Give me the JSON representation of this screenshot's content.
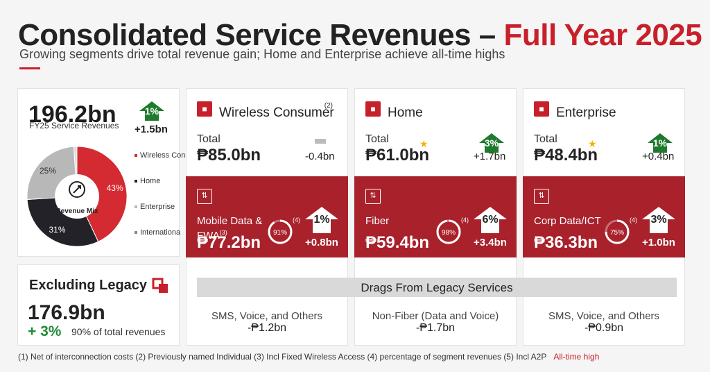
{
  "header": {
    "title_main": "Consolidated Service Revenues – ",
    "title_accent": "Full Year 2025",
    "subtitle": "Growing segments drive total revenue gain; Home and Enterprise achieve all-time highs"
  },
  "total": {
    "value": "196.2bn",
    "label": "FY25 Service Revenues",
    "pct": "1%",
    "change": "+1.5bn",
    "center_label": "Revenue Mix",
    "center_icon": "peso-growth-icon"
  },
  "excluding_legacy": {
    "title": "Excluding Legacy",
    "value": "176.9bn",
    "pct": "+ 3%",
    "share": "90% of total revenues"
  },
  "segments": [
    {
      "title": "Wireless Consumer",
      "title_note": "(2)",
      "total_label": "Total",
      "total": "₱85.0bn",
      "change": "-0.4bn",
      "change_pct": "",
      "trend": "flat",
      "all_time_high": false,
      "sub_label": "Mobile Data &",
      "sub_label2": "FWA",
      "sub_label_note": "(3)",
      "sub_value": "₱77.2bn",
      "share_pct": "91%",
      "share_note": "(4)",
      "sub_pct": "1%",
      "sub_change": "+0.8bn",
      "legacy_label": "SMS, Voice, and Others",
      "legacy_value": "-₱1.2bn",
      "icon": "wireless-consumer-icon",
      "band_icon": "mobile-data-icon"
    },
    {
      "title": "Home",
      "title_note": "",
      "total_label": "Total",
      "total": "₱61.0bn",
      "change": "+1.7bn",
      "change_pct": "3%",
      "trend": "up",
      "all_time_high": true,
      "sub_label": "Fiber",
      "sub_label2": "",
      "sub_label_note": "",
      "sub_value": "₱59.4bn",
      "share_pct": "98%",
      "share_note": "(4)",
      "sub_pct": "6%",
      "sub_change": "+3.4bn",
      "legacy_label": "Non-Fiber (Data and Voice)",
      "legacy_value": "-₱1.7bn",
      "icon": "home-icon",
      "band_icon": "fiber-icon"
    },
    {
      "title": "Enterprise",
      "title_note": "",
      "total_label": "Total",
      "total": "₱48.4bn",
      "change": "+0.4bn",
      "change_pct": "1%",
      "trend": "up",
      "all_time_high": true,
      "sub_label": "Corp Data/ICT",
      "sub_label2": "",
      "sub_label_note": "",
      "sub_value": "₱36.3bn",
      "share_pct": "75%",
      "share_note": "(4)",
      "sub_pct": "3%",
      "sub_change": "+1.0bn",
      "legacy_label": "SMS, Voice, and Others",
      "legacy_value": "-₱0.9bn",
      "icon": "enterprise-icon",
      "band_icon": "cloud-icon"
    }
  ],
  "legacy_bar": {
    "label": "Drags From Legacy Services"
  },
  "footnote": {
    "text_a": "(1) Net of interconnection costs (2) Previously named Individual (3) Incl Fixed Wireless Access  (4) percentage of segment revenues (5) Incl A2P",
    "all_time_high": "All-time high"
  },
  "colors": {
    "accent": "#c8202a",
    "band": "#a8212b",
    "up": "#1f7a2e",
    "star": "#f2b400",
    "wireless": "#d42a32",
    "home": "#222228",
    "enterprise": "#b8b8b8",
    "international": "#dcdcdc"
  },
  "chart_data": {
    "type": "pie",
    "title": "Revenue Mix",
    "categories": [
      "Wireless Consumer",
      "Home",
      "Enterprise",
      "International"
    ],
    "values": [
      43,
      31,
      25,
      1
    ],
    "data_labels": [
      "43%",
      "31%",
      "25%",
      ""
    ],
    "legend": [
      "Wireless Consumer",
      "Home",
      "Enterprise",
      "Internationa"
    ],
    "legend_position": "right",
    "donut": true
  }
}
